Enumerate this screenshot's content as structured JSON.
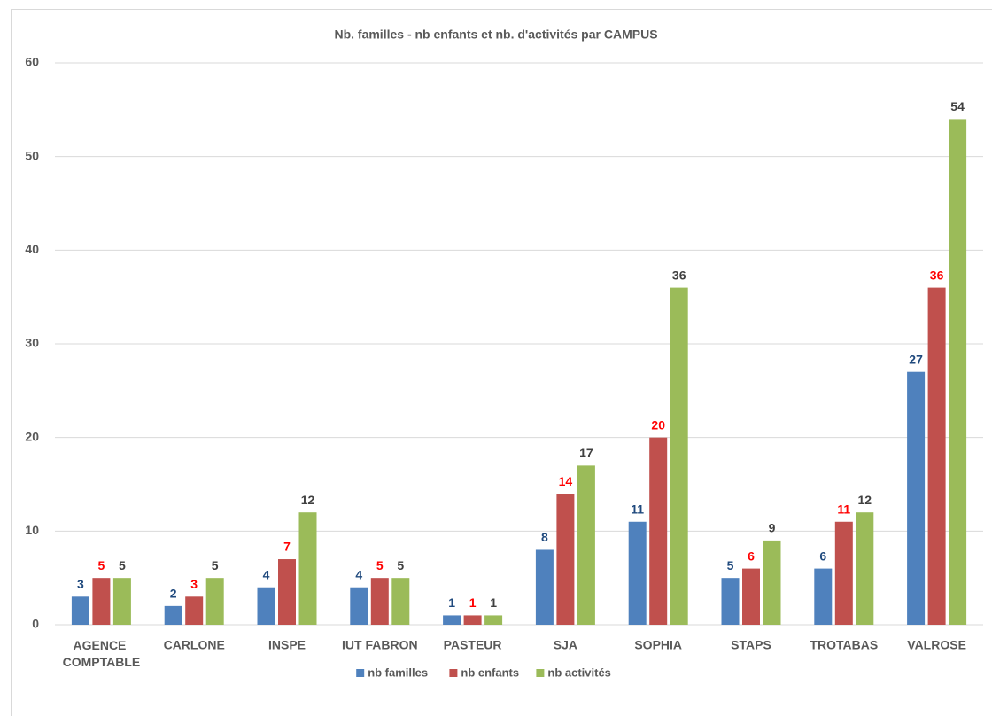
{
  "chart_data": {
    "type": "bar",
    "title": "Nb. familles - nb enfants et nb. d'activités par CAMPUS",
    "categories": [
      "AGENCE COMPTABLE",
      "CARLONE",
      "INSPE",
      "IUT FABRON",
      "PASTEUR",
      "SJA",
      "SOPHIA",
      "STAPS",
      "TROTABAS",
      "VALROSE"
    ],
    "series": [
      {
        "name": "nb familles",
        "color": "#4f81bd",
        "label_color": "#1f497d",
        "values": [
          3,
          2,
          4,
          4,
          1,
          8,
          11,
          5,
          6,
          27
        ]
      },
      {
        "name": "nb enfants",
        "color": "#c0504d",
        "label_color": "#ff0000",
        "values": [
          5,
          3,
          7,
          5,
          1,
          14,
          20,
          6,
          11,
          36
        ]
      },
      {
        "name": "nb activités",
        "color": "#9bbb59",
        "label_color": "#404040",
        "values": [
          5,
          5,
          12,
          5,
          1,
          17,
          36,
          9,
          12,
          54
        ]
      }
    ],
    "ylim": [
      0,
      60
    ],
    "yticks": [
      0,
      10,
      20,
      30,
      40,
      50,
      60
    ],
    "grid": true,
    "legend": "bottom"
  }
}
